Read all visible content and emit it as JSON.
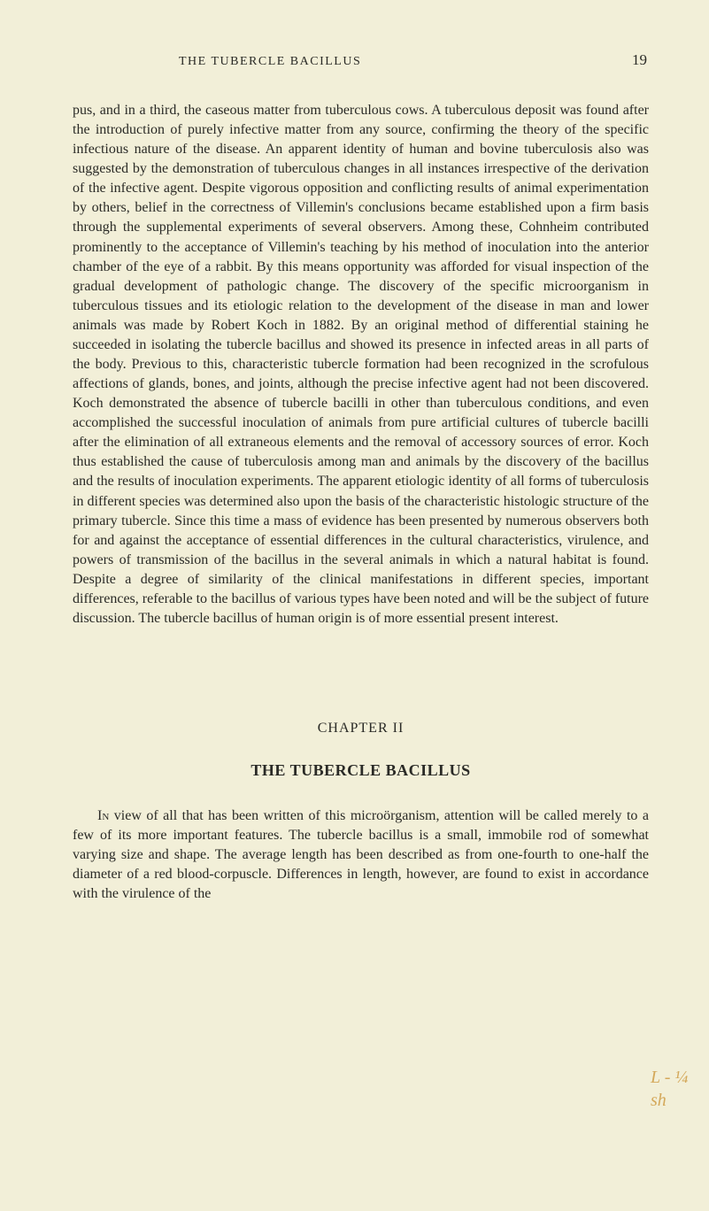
{
  "page": {
    "running_head": "THE TUBERCLE BACILLUS",
    "number": "19",
    "background_color": "#f2efd8",
    "text_color": "#2a2a26",
    "body_fontsize": 16,
    "line_height": 1.38
  },
  "main_paragraph": "pus, and in a third, the caseous matter from tuberculous cows. A tuberculous deposit was found after the introduction of purely infective matter from any source, confirming the theory of the specific infectious nature of the disease. An apparent identity of human and bovine tuberculosis also was suggested by the demonstration of tuberculous changes in all instances irrespective of the derivation of the infective agent. Despite vigorous opposition and conflicting results of animal experimentation by others, belief in the correctness of Villemin's conclusions became established upon a firm basis through the supplemental experiments of several observers. Among these, Cohnheim contributed prominently to the acceptance of Villemin's teaching by his method of inoculation into the anterior chamber of the eye of a rabbit. By this means opportunity was afforded for visual inspection of the gradual development of pathologic change. The discovery of the specific microorganism in tuberculous tissues and its etiologic relation to the development of the disease in man and lower animals was made by Robert Koch in 1882. By an original method of differential staining he succeeded in isolating the tubercle bacillus and showed its presence in infected areas in all parts of the body. Previous to this, characteristic tubercle formation had been recognized in the scrofulous affections of glands, bones, and joints, although the precise infective agent had not been discovered. Koch demonstrated the absence of tubercle bacilli in other than tuberculous conditions, and even accomplished the successful inoculation of animals from pure artificial cultures of tubercle bacilli after the elimination of all extraneous elements and the removal of accessory sources of error. Koch thus established the cause of tuberculosis among man and animals by the discovery of the bacillus and the results of inoculation experiments. The apparent etiologic identity of all forms of tuberculosis in different species was determined also upon the basis of the characteristic histologic structure of the primary tubercle. Since this time a mass of evidence has been presented by numerous observers both for and against the acceptance of essential differences in the cultural characteristics, virulence, and powers of transmission of the bacillus in the several animals in which a natural habitat is found. Despite a degree of similarity of the clinical manifestations in different species, important differences, referable to the bacillus of various types have been noted and will be the subject of future discussion. The tubercle bacillus of human origin is of more essential present interest.",
  "chapter": {
    "label": "CHAPTER II",
    "title": "THE TUBERCLE BACILLUS",
    "lead_word": "In",
    "body": " view of all that has been written of this microörganism, attention will be called merely to a few of its more important features. The tubercle bacillus is a small, immobile rod of somewhat varying size and shape. The average length has been described as from one-fourth to one-half the diameter of a red blood-corpuscle. Differences in length, however, are found to exist in accordance with the virulence of the"
  },
  "margin_note": {
    "text": "L - ¼\n  sh",
    "color": "#d4a85a"
  }
}
